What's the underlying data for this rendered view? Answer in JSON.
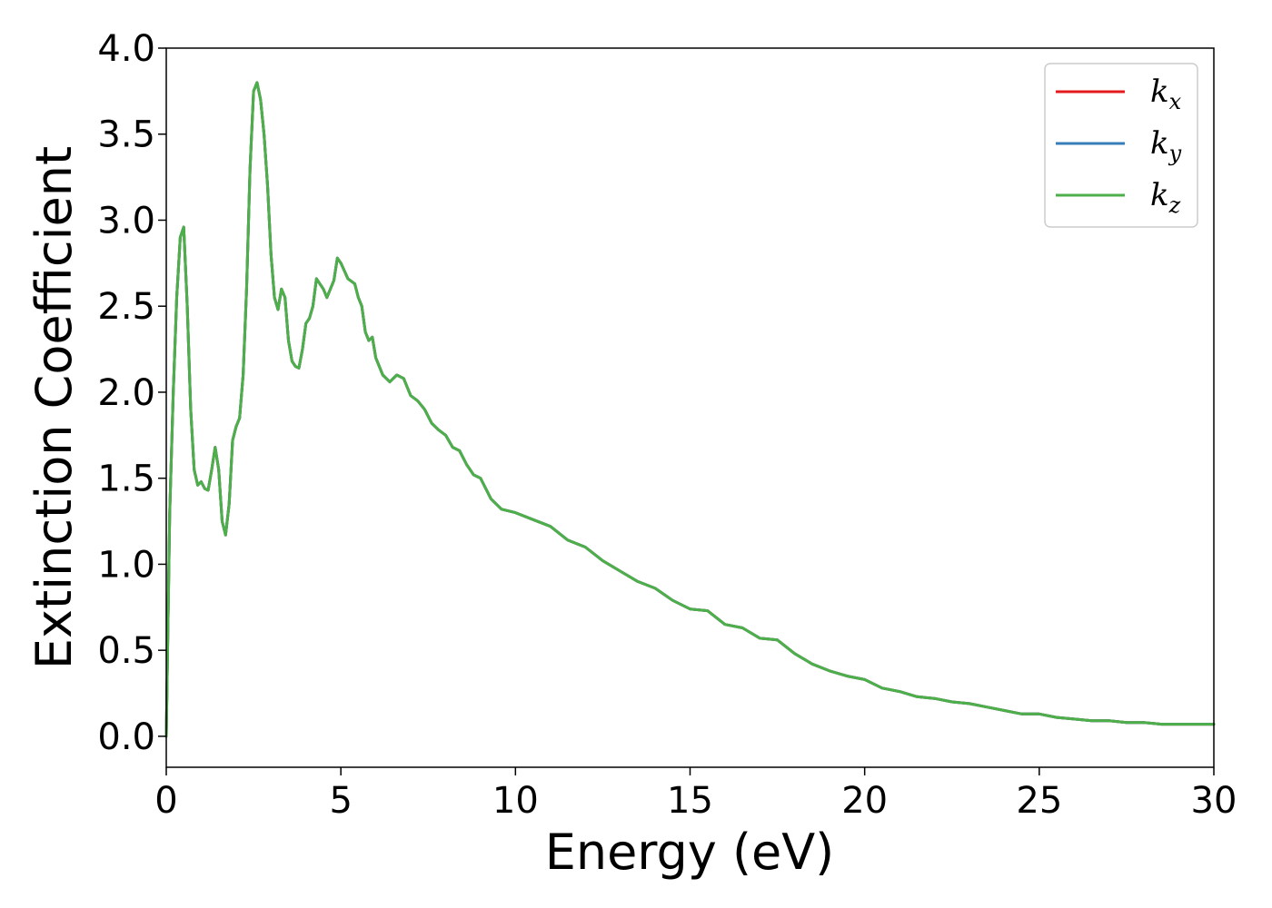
{
  "chart_data": {
    "type": "line",
    "title": "",
    "xlabel": "Energy (eV)",
    "ylabel": "Extinction Coefficient",
    "xlim": [
      0,
      30
    ],
    "ylim": [
      -0.18,
      4.0
    ],
    "xticks": [
      0,
      5,
      10,
      15,
      20,
      25,
      30
    ],
    "yticks": [
      0.0,
      0.5,
      1.0,
      1.5,
      2.0,
      2.5,
      3.0,
      3.5,
      4.0
    ],
    "xtick_labels": [
      "0",
      "5",
      "10",
      "15",
      "20",
      "25",
      "30"
    ],
    "ytick_labels": [
      "0.0",
      "0.5",
      "1.0",
      "1.5",
      "2.0",
      "2.5",
      "3.0",
      "3.5",
      "4.0"
    ],
    "grid": false,
    "legend_position": "top-right",
    "x": [
      0,
      0.1,
      0.2,
      0.3,
      0.4,
      0.5,
      0.6,
      0.7,
      0.8,
      0.9,
      1.0,
      1.1,
      1.2,
      1.3,
      1.4,
      1.5,
      1.6,
      1.7,
      1.8,
      1.9,
      2.0,
      2.1,
      2.2,
      2.3,
      2.4,
      2.5,
      2.6,
      2.7,
      2.8,
      2.9,
      3.0,
      3.1,
      3.2,
      3.3,
      3.4,
      3.5,
      3.6,
      3.7,
      3.8,
      3.9,
      4.0,
      4.1,
      4.2,
      4.3,
      4.5,
      4.6,
      4.8,
      4.9,
      5.0,
      5.2,
      5.4,
      5.5,
      5.6,
      5.7,
      5.8,
      5.9,
      6.0,
      6.2,
      6.4,
      6.6,
      6.8,
      7.0,
      7.2,
      7.4,
      7.6,
      7.8,
      8.0,
      8.2,
      8.4,
      8.6,
      8.8,
      9.0,
      9.3,
      9.6,
      10.0,
      10.5,
      11.0,
      11.5,
      12.0,
      12.5,
      13.0,
      13.5,
      14.0,
      14.5,
      15.0,
      15.5,
      16.0,
      16.5,
      17.0,
      17.5,
      18.0,
      18.5,
      19.0,
      19.5,
      20.0,
      20.5,
      21.0,
      21.5,
      22.0,
      22.5,
      23.0,
      23.5,
      24.0,
      24.5,
      25.0,
      25.5,
      26.0,
      26.5,
      27.0,
      27.5,
      28.0,
      28.5,
      29.0,
      29.5,
      30.0
    ],
    "series": [
      {
        "name": "k_x",
        "color": "#e41a1c",
        "values": [
          0.0,
          1.3,
          2.0,
          2.55,
          2.9,
          2.96,
          2.5,
          1.9,
          1.55,
          1.46,
          1.48,
          1.44,
          1.43,
          1.55,
          1.68,
          1.55,
          1.25,
          1.17,
          1.35,
          1.72,
          1.8,
          1.85,
          2.1,
          2.6,
          3.3,
          3.75,
          3.8,
          3.7,
          3.5,
          3.2,
          2.8,
          2.55,
          2.48,
          2.6,
          2.55,
          2.3,
          2.18,
          2.15,
          2.14,
          2.25,
          2.4,
          2.43,
          2.5,
          2.66,
          2.6,
          2.55,
          2.65,
          2.78,
          2.75,
          2.66,
          2.63,
          2.55,
          2.5,
          2.35,
          2.3,
          2.32,
          2.2,
          2.1,
          2.06,
          2.1,
          2.08,
          1.98,
          1.95,
          1.9,
          1.82,
          1.78,
          1.75,
          1.68,
          1.66,
          1.58,
          1.52,
          1.5,
          1.38,
          1.32,
          1.3,
          1.26,
          1.22,
          1.14,
          1.1,
          1.02,
          0.96,
          0.9,
          0.86,
          0.79,
          0.74,
          0.73,
          0.65,
          0.63,
          0.57,
          0.56,
          0.48,
          0.42,
          0.38,
          0.35,
          0.33,
          0.28,
          0.26,
          0.23,
          0.22,
          0.2,
          0.19,
          0.17,
          0.15,
          0.13,
          0.13,
          0.11,
          0.1,
          0.09,
          0.09,
          0.08,
          0.08,
          0.07,
          0.07,
          0.07,
          0.07
        ]
      },
      {
        "name": "k_y",
        "color": "#377eb8",
        "values": [
          0.0,
          1.3,
          2.0,
          2.55,
          2.9,
          2.96,
          2.5,
          1.9,
          1.55,
          1.46,
          1.48,
          1.44,
          1.43,
          1.55,
          1.68,
          1.55,
          1.25,
          1.17,
          1.35,
          1.72,
          1.8,
          1.85,
          2.1,
          2.6,
          3.3,
          3.75,
          3.8,
          3.7,
          3.5,
          3.2,
          2.8,
          2.55,
          2.48,
          2.6,
          2.55,
          2.3,
          2.18,
          2.15,
          2.14,
          2.25,
          2.4,
          2.43,
          2.5,
          2.66,
          2.6,
          2.55,
          2.65,
          2.78,
          2.75,
          2.66,
          2.63,
          2.55,
          2.5,
          2.35,
          2.3,
          2.32,
          2.2,
          2.1,
          2.06,
          2.1,
          2.08,
          1.98,
          1.95,
          1.9,
          1.82,
          1.78,
          1.75,
          1.68,
          1.66,
          1.58,
          1.52,
          1.5,
          1.38,
          1.32,
          1.3,
          1.26,
          1.22,
          1.14,
          1.1,
          1.02,
          0.96,
          0.9,
          0.86,
          0.79,
          0.74,
          0.73,
          0.65,
          0.63,
          0.57,
          0.56,
          0.48,
          0.42,
          0.38,
          0.35,
          0.33,
          0.28,
          0.26,
          0.23,
          0.22,
          0.2,
          0.19,
          0.17,
          0.15,
          0.13,
          0.13,
          0.11,
          0.1,
          0.09,
          0.09,
          0.08,
          0.08,
          0.07,
          0.07,
          0.07,
          0.07
        ]
      },
      {
        "name": "k_z",
        "color": "#4daf4a",
        "values": [
          0.0,
          1.3,
          2.0,
          2.55,
          2.9,
          2.96,
          2.5,
          1.9,
          1.55,
          1.46,
          1.48,
          1.44,
          1.43,
          1.55,
          1.68,
          1.55,
          1.25,
          1.17,
          1.35,
          1.72,
          1.8,
          1.85,
          2.1,
          2.6,
          3.3,
          3.75,
          3.8,
          3.7,
          3.5,
          3.2,
          2.8,
          2.55,
          2.48,
          2.6,
          2.55,
          2.3,
          2.18,
          2.15,
          2.14,
          2.25,
          2.4,
          2.43,
          2.5,
          2.66,
          2.6,
          2.55,
          2.65,
          2.78,
          2.75,
          2.66,
          2.63,
          2.55,
          2.5,
          2.35,
          2.3,
          2.32,
          2.2,
          2.1,
          2.06,
          2.1,
          2.08,
          1.98,
          1.95,
          1.9,
          1.82,
          1.78,
          1.75,
          1.68,
          1.66,
          1.58,
          1.52,
          1.5,
          1.38,
          1.32,
          1.3,
          1.26,
          1.22,
          1.14,
          1.1,
          1.02,
          0.96,
          0.9,
          0.86,
          0.79,
          0.74,
          0.73,
          0.65,
          0.63,
          0.57,
          0.56,
          0.48,
          0.42,
          0.38,
          0.35,
          0.33,
          0.28,
          0.26,
          0.23,
          0.22,
          0.2,
          0.19,
          0.17,
          0.15,
          0.13,
          0.13,
          0.11,
          0.1,
          0.09,
          0.09,
          0.08,
          0.08,
          0.07,
          0.07,
          0.07,
          0.07
        ]
      }
    ],
    "legend": [
      {
        "base": "k",
        "sub": "x",
        "color": "#e41a1c"
      },
      {
        "base": "k",
        "sub": "y",
        "color": "#377eb8"
      },
      {
        "base": "k",
        "sub": "z",
        "color": "#4daf4a"
      }
    ]
  }
}
